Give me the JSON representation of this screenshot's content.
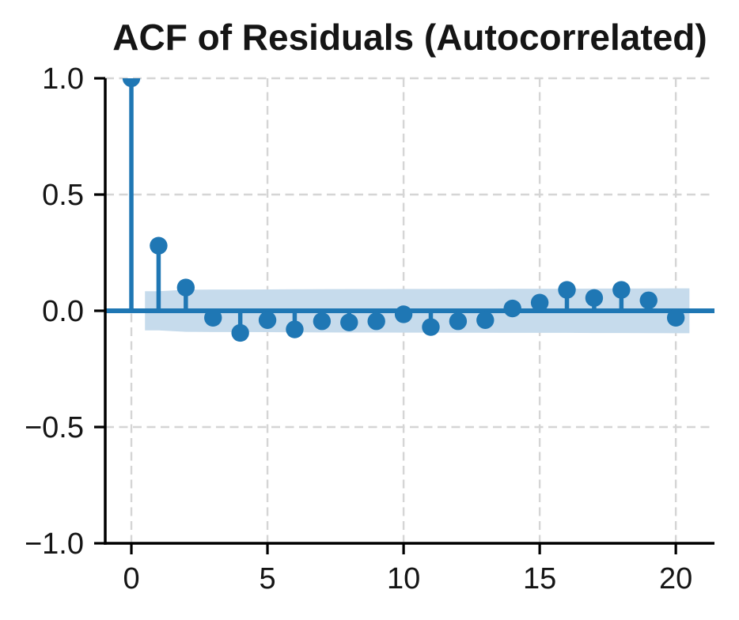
{
  "chart_data": {
    "type": "stem",
    "title": "ACF of Residuals (Autocorrelated)",
    "xlabel": "",
    "ylabel": "",
    "lags": [
      0,
      1,
      2,
      3,
      4,
      5,
      6,
      7,
      8,
      9,
      10,
      11,
      12,
      13,
      14,
      15,
      16,
      17,
      18,
      19,
      20
    ],
    "acf_values": [
      1.0,
      0.28,
      0.1,
      -0.03,
      -0.095,
      -0.04,
      -0.08,
      -0.045,
      -0.05,
      -0.045,
      -0.015,
      -0.07,
      -0.045,
      -0.04,
      0.01,
      0.035,
      0.09,
      0.055,
      0.09,
      0.045,
      -0.03
    ],
    "confidence_band": {
      "lags": [
        0.5,
        1,
        2,
        3,
        4,
        5,
        6,
        7,
        8,
        9,
        10,
        11,
        12,
        13,
        14,
        15,
        16,
        17,
        18,
        19,
        20,
        20.5
      ],
      "ci": [
        0.084,
        0.084,
        0.0905,
        0.0915,
        0.0915,
        0.092,
        0.0925,
        0.093,
        0.0935,
        0.0935,
        0.094,
        0.094,
        0.0945,
        0.0945,
        0.095,
        0.095,
        0.095,
        0.0955,
        0.0955,
        0.096,
        0.0965,
        0.0965
      ]
    },
    "x_ticks": [
      0,
      5,
      10,
      15,
      20
    ],
    "x_tick_labels": [
      "0",
      "5",
      "10",
      "15",
      "20"
    ],
    "y_ticks": [
      -1.0,
      -0.5,
      0.0,
      0.5,
      1.0
    ],
    "y_tick_labels": [
      "−1.0",
      "−0.5",
      "0.0",
      "0.5",
      "1.0"
    ],
    "xlim": [
      -0.96,
      21.42
    ],
    "ylim": [
      -1.0,
      1.0
    ],
    "grid": true,
    "grid_style": "dashed",
    "legend": null
  },
  "colors": {
    "stem": "#1f77b4",
    "band": "#c6dbec",
    "grid": "#d5d5d5",
    "axis": "#000000",
    "text": "#151515",
    "background": "#ffffff"
  }
}
